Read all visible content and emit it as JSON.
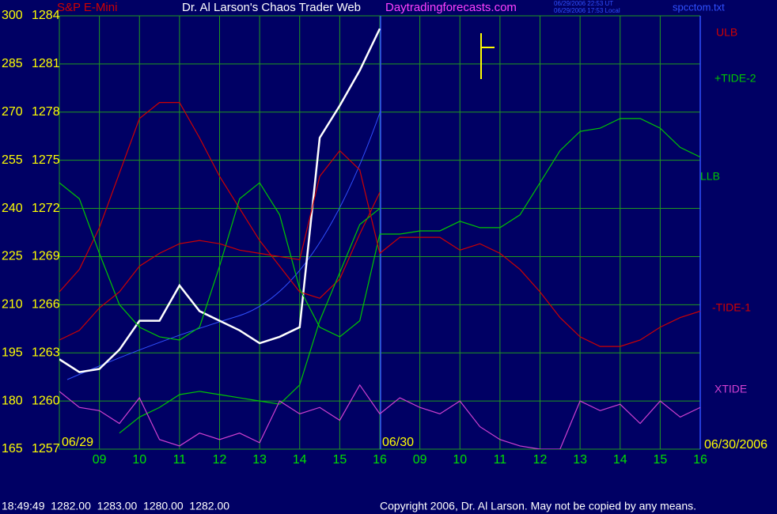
{
  "chart_data": {
    "type": "line",
    "title": "Dr. Al Larson's Chaos Trader Web",
    "subtitle": "Daytradingforecasts.com",
    "annotations": [
      "S&P E-Mini",
      "06/29/2006 22:53 UT",
      "06/29/2006 17:53 Local",
      "spcctom.txt",
      "06/29",
      "06/30",
      "06/30/2006",
      "18:49:49  1282.00  1283.00  1280.00  1282.00",
      "Copyright 2006, Dr. Al Larson. May not be copied by any means."
    ],
    "x": [
      0,
      0.5,
      1,
      1.5,
      2,
      2.5,
      3,
      3.5,
      4,
      4.5,
      5,
      5.5,
      6,
      6.5,
      7,
      7.5,
      8,
      8.5,
      9,
      9.5,
      10,
      10.5,
      11,
      11.5,
      12,
      12.5,
      13,
      13.5,
      14,
      14.5,
      15,
      15.5,
      16
    ],
    "xlim": [
      0,
      16
    ],
    "xticks": [
      {
        "value": 1,
        "label": "09"
      },
      {
        "value": 2,
        "label": "10"
      },
      {
        "value": 3,
        "label": "11"
      },
      {
        "value": 4,
        "label": "12"
      },
      {
        "value": 5,
        "label": "13"
      },
      {
        "value": 6,
        "label": "14"
      },
      {
        "value": 7,
        "label": "15"
      },
      {
        "value": 8,
        "label": "16"
      },
      {
        "value": 9,
        "label": "09"
      },
      {
        "value": 10,
        "label": "10"
      },
      {
        "value": 11,
        "label": "11"
      },
      {
        "value": 12,
        "label": "12"
      },
      {
        "value": 13,
        "label": "13"
      },
      {
        "value": 14,
        "label": "14"
      },
      {
        "value": 15,
        "label": "15"
      },
      {
        "value": 16,
        "label": "16"
      }
    ],
    "ylim": [
      165,
      300
    ],
    "yticks": [
      165,
      180,
      195,
      210,
      225,
      240,
      255,
      270,
      285,
      300
    ],
    "y2lim": [
      1257,
      1284
    ],
    "y2ticks": [
      1257,
      1260,
      1263,
      1266,
      1269,
      1272,
      1275,
      1278,
      1281,
      1284
    ],
    "grid": true,
    "series": [
      {
        "name": "S&P E-Mini",
        "color": "#ffffff",
        "values": [
          193,
          189,
          190,
          196,
          205,
          205,
          216,
          208,
          205,
          202,
          198,
          200,
          203,
          262,
          272,
          283,
          296,
          null,
          null,
          null,
          null,
          null,
          null,
          null,
          null,
          null,
          null,
          null,
          null,
          null,
          null,
          null,
          null
        ]
      },
      {
        "name": "ULB",
        "color": "#d00000",
        "values": [
          214,
          221,
          234,
          251,
          268,
          273,
          273,
          262,
          250,
          240,
          230,
          222,
          214,
          212,
          218,
          232,
          245,
          null,
          null,
          null,
          null,
          null,
          null,
          null,
          null,
          null,
          null,
          null,
          null,
          null,
          null,
          null,
          null
        ]
      },
      {
        "name": "+TIDE-2",
        "color": "#00c800",
        "values": [
          248,
          243,
          226,
          210,
          203,
          200,
          199,
          203,
          222,
          243,
          248,
          238,
          215,
          203,
          200,
          205,
          232,
          232,
          233,
          233,
          236,
          234,
          234,
          238,
          248,
          258,
          264,
          265,
          268,
          268,
          265,
          259,
          256
        ]
      },
      {
        "name": "LLB",
        "color": "#00c800",
        "values": [
          null,
          null,
          null,
          170,
          175,
          178,
          182,
          183,
          182,
          181,
          180,
          179,
          185,
          205,
          220,
          235,
          240,
          null,
          null,
          null,
          null,
          null,
          null,
          null,
          null,
          null,
          null,
          null,
          null,
          null,
          null,
          null,
          null
        ]
      },
      {
        "name": "-TIDE-1",
        "color": "#d00000",
        "values": [
          199,
          202,
          209,
          214,
          222,
          226,
          229,
          230,
          229,
          227,
          226,
          225,
          224,
          250,
          258,
          252,
          226,
          231,
          231,
          231,
          227,
          229,
          226,
          221,
          214,
          206,
          200,
          197,
          197,
          199,
          203,
          206,
          208
        ]
      },
      {
        "name": "XTIDE",
        "color": "#d040d0",
        "values": [
          183,
          178,
          177,
          173,
          181,
          168,
          166,
          170,
          168,
          170,
          167,
          180,
          176,
          178,
          174,
          185,
          176,
          181,
          178,
          176,
          180,
          172,
          168,
          166,
          165,
          165,
          180,
          177,
          179,
          173,
          180,
          175,
          178
        ]
      }
    ]
  }
}
